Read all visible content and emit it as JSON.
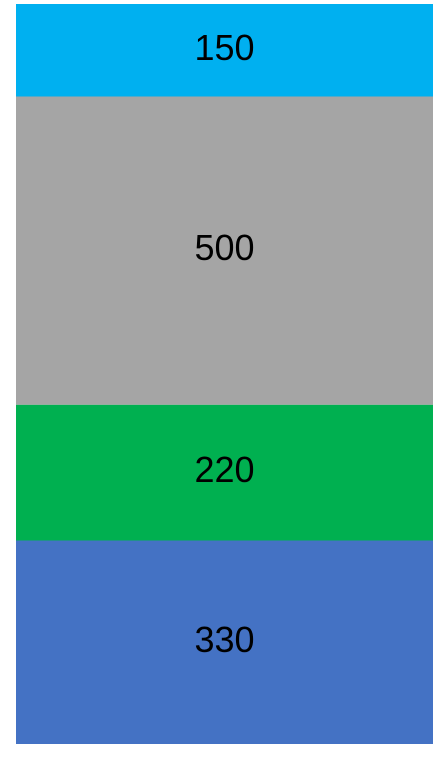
{
  "chart_data": {
    "type": "stacked_bar",
    "values": [
      150,
      500,
      220,
      330
    ],
    "colors": [
      "#00b0f0",
      "#a5a5a5",
      "#00b050",
      "#4472c4"
    ]
  }
}
